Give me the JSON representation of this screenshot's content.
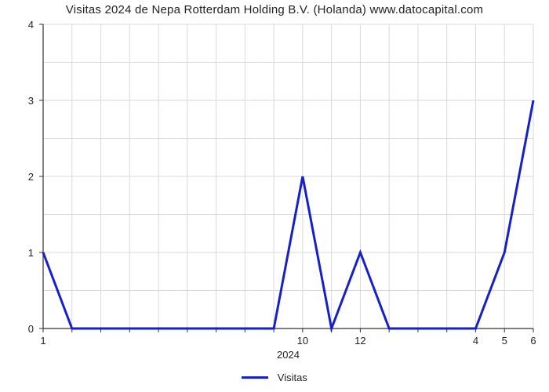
{
  "title": "Visitas 2024 de Nepa Rotterdam Holding B.V. (Holanda) www.datocapital.com",
  "chart": {
    "type": "line",
    "background_color": "#ffffff",
    "grid_color": "#d9d9d9",
    "axis_color": "#333333",
    "line_color": "#1620c8",
    "line_width": 3,
    "title_fontsize": 15,
    "tick_fontsize": 13,
    "x_outer_label": "2024",
    "y": {
      "min": 0,
      "max": 4,
      "ticks": [
        0,
        1,
        2,
        3,
        4
      ],
      "tick_labels": [
        "0",
        "1",
        "2",
        "3",
        "4"
      ]
    },
    "x": {
      "count": 18,
      "major_indices": [
        0,
        9,
        11,
        15,
        16,
        17
      ],
      "major_labels": [
        "1",
        "10",
        "12",
        "4",
        "5",
        "6"
      ]
    },
    "series": {
      "name": "Visitas",
      "values": [
        1,
        0,
        0,
        0,
        0,
        0,
        0,
        0,
        0,
        2,
        0,
        1,
        0,
        0,
        0,
        0,
        1,
        3
      ]
    }
  },
  "legend": {
    "label": "Visitas"
  }
}
